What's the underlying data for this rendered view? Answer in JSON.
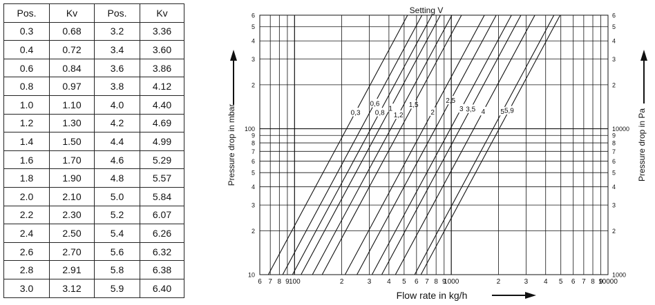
{
  "table": {
    "headers": [
      "Pos.",
      "Kv",
      "Pos.",
      "Kv"
    ],
    "rows": [
      [
        "0.3",
        "0.68",
        "3.2",
        "3.36"
      ],
      [
        "0.4",
        "0.72",
        "3.4",
        "3.60"
      ],
      [
        "0.6",
        "0.84",
        "3.6",
        "3.86"
      ],
      [
        "0.8",
        "0.97",
        "3.8",
        "4.12"
      ],
      [
        "1.0",
        "1.10",
        "4.0",
        "4.40"
      ],
      [
        "1.2",
        "1.30",
        "4.2",
        "4.69"
      ],
      [
        "1.4",
        "1.50",
        "4.4",
        "4.99"
      ],
      [
        "1.6",
        "1.70",
        "4.6",
        "5.29"
      ],
      [
        "1.8",
        "1.90",
        "4.8",
        "5.57"
      ],
      [
        "2.0",
        "2.10",
        "5.0",
        "5.84"
      ],
      [
        "2.2",
        "2.30",
        "5.2",
        "6.07"
      ],
      [
        "2.4",
        "2.50",
        "5.4",
        "6.26"
      ],
      [
        "2.6",
        "2.70",
        "5.6",
        "6.32"
      ],
      [
        "2.8",
        "2.91",
        "5.8",
        "6.38"
      ],
      [
        "3.0",
        "3.12",
        "5.9",
        "6.40"
      ]
    ]
  },
  "chart_data": {
    "type": "line",
    "title": "Setting V",
    "xlabel": "Flow rate in kg/h",
    "ylabel_left": "Pressure drop in mbar",
    "ylabel_right": "Pressure drop in Pa",
    "x_scale": "log",
    "y_scale": "log",
    "xlim": [
      60,
      10000
    ],
    "ylim_left": [
      10,
      600
    ],
    "ylim_right": [
      1000,
      60000
    ],
    "grid": true,
    "x_tick_labels": [
      {
        "v": 60,
        "t": "6"
      },
      {
        "v": 70,
        "t": "7"
      },
      {
        "v": 80,
        "t": "8"
      },
      {
        "v": 90,
        "t": "9"
      },
      {
        "v": 100,
        "t": "100"
      },
      {
        "v": 200,
        "t": "2"
      },
      {
        "v": 300,
        "t": "3"
      },
      {
        "v": 400,
        "t": "4"
      },
      {
        "v": 500,
        "t": "5"
      },
      {
        "v": 600,
        "t": "6"
      },
      {
        "v": 700,
        "t": "7"
      },
      {
        "v": 800,
        "t": "8"
      },
      {
        "v": 900,
        "t": "9"
      },
      {
        "v": 1000,
        "t": "1000"
      },
      {
        "v": 2000,
        "t": "2"
      },
      {
        "v": 3000,
        "t": "3"
      },
      {
        "v": 4000,
        "t": "4"
      },
      {
        "v": 5000,
        "t": "5"
      },
      {
        "v": 6000,
        "t": "6"
      },
      {
        "v": 7000,
        "t": "7"
      },
      {
        "v": 8000,
        "t": "8"
      },
      {
        "v": 9000,
        "t": "9"
      },
      {
        "v": 10000,
        "t": "10000"
      }
    ],
    "y_left_tick_labels": [
      {
        "v": 10,
        "t": "10"
      },
      {
        "v": 20,
        "t": "2"
      },
      {
        "v": 30,
        "t": "3"
      },
      {
        "v": 40,
        "t": "4"
      },
      {
        "v": 50,
        "t": "5"
      },
      {
        "v": 60,
        "t": "6"
      },
      {
        "v": 70,
        "t": "7"
      },
      {
        "v": 80,
        "t": "8"
      },
      {
        "v": 90,
        "t": "9"
      },
      {
        "v": 100,
        "t": "100"
      },
      {
        "v": 200,
        "t": "2"
      },
      {
        "v": 300,
        "t": "3"
      },
      {
        "v": 400,
        "t": "4"
      },
      {
        "v": 500,
        "t": "5"
      },
      {
        "v": 600,
        "t": "6"
      }
    ],
    "y_right_tick_labels": [
      {
        "v": 1000,
        "t": "1000"
      },
      {
        "v": 2000,
        "t": "2"
      },
      {
        "v": 3000,
        "t": "3"
      },
      {
        "v": 4000,
        "t": "4"
      },
      {
        "v": 5000,
        "t": "5"
      },
      {
        "v": 6000,
        "t": "6"
      },
      {
        "v": 7000,
        "t": "7"
      },
      {
        "v": 8000,
        "t": "8"
      },
      {
        "v": 9000,
        "t": "9"
      },
      {
        "v": 10000,
        "t": "10000"
      },
      {
        "v": 20000,
        "t": "2"
      },
      {
        "v": 30000,
        "t": "3"
      },
      {
        "v": 40000,
        "t": "4"
      },
      {
        "v": 50000,
        "t": "5"
      },
      {
        "v": 60000,
        "t": "6"
      }
    ],
    "series": [
      {
        "name": "0,3",
        "x": [
          68,
          245
        ],
        "y": [
          10,
          130
        ]
      },
      {
        "name": "0,6",
        "x": [
          84,
          325
        ],
        "y": [
          10,
          150
        ]
      },
      {
        "name": "0,8",
        "x": [
          97,
          350
        ],
        "y": [
          10,
          130
        ]
      },
      {
        "name": "1",
        "x": [
          110,
          410
        ],
        "y": [
          10,
          139
        ]
      },
      {
        "name": "1,2",
        "x": [
          130,
          460
        ],
        "y": [
          10,
          125
        ]
      },
      {
        "name": "1,5",
        "x": [
          150,
          575
        ],
        "y": [
          10,
          147
        ]
      },
      {
        "name": "2",
        "x": [
          210,
          760
        ],
        "y": [
          10,
          131
        ]
      },
      {
        "name": "2,5",
        "x": [
          250,
          990
        ],
        "y": [
          10,
          157
        ]
      },
      {
        "name": "3",
        "x": [
          312,
          1160
        ],
        "y": [
          10,
          138
        ]
      },
      {
        "name": "3,5",
        "x": [
          360,
          1330
        ],
        "y": [
          10,
          137
        ]
      },
      {
        "name": "4",
        "x": [
          440,
          1600
        ],
        "y": [
          10,
          132
        ]
      },
      {
        "name": "5",
        "x": [
          584,
          2120
        ],
        "y": [
          10,
          132
        ]
      },
      {
        "name": "5,9",
        "x": [
          640,
          2340
        ],
        "y": [
          10,
          134
        ]
      }
    ],
    "curve_labels": [
      "0,3",
      "0,6",
      "0,8",
      "1",
      "1,2",
      "1,5",
      "2",
      "2,5",
      "3",
      "3,5",
      "4",
      "5",
      "5,9"
    ]
  }
}
